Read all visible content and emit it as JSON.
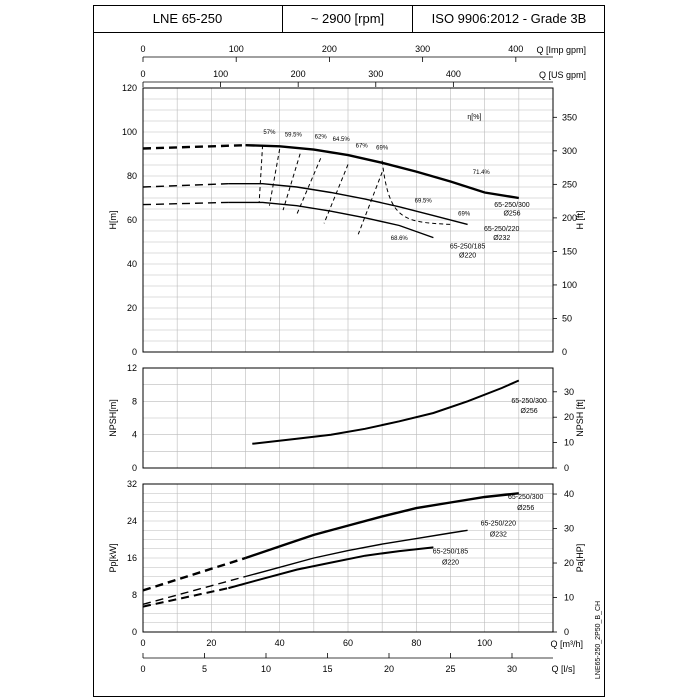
{
  "header": {
    "model": "LNE 65-250",
    "speed": "~ 2900 [rpm]",
    "standard": "ISO 9906:2012 - Grade 3B"
  },
  "top_axes": {
    "imp_gpm": {
      "label": "Q [Imp gpm]",
      "ticks": [
        "0",
        "100",
        "200",
        "300",
        "400"
      ]
    },
    "us_gpm": {
      "label": "Q [US gpm]",
      "ticks": [
        "0",
        "100",
        "200",
        "300",
        "400"
      ]
    }
  },
  "bottom_axes": {
    "m3h": {
      "label": "Q [m³/h]",
      "ticks": [
        "0",
        "20",
        "40",
        "60",
        "80",
        "100"
      ]
    },
    "ls": {
      "label": "Q [l/s]",
      "ticks": [
        "0",
        "5",
        "10",
        "15",
        "20",
        "25",
        "30"
      ]
    }
  },
  "side_code": "LNE65-250_2P50_B_CH",
  "chart_data": [
    {
      "type": "line",
      "panel": "head",
      "xlabel": "Q [m³/h]",
      "ylabel": "H[m]",
      "ylabel_right": "H [ft]",
      "ylim": [
        0,
        120
      ],
      "xlim": [
        0,
        120
      ],
      "yticks": [
        "0",
        "20",
        "40",
        "60",
        "80",
        "100",
        "120"
      ],
      "yticks_right": [
        "50",
        "100",
        "150",
        "200",
        "250",
        "300",
        "350"
      ],
      "eff_axis_label": "η[%]",
      "series": [
        {
          "name": "65-250/300 Ø256",
          "x": [
            0,
            30,
            40,
            50,
            60,
            70,
            80,
            90,
            100,
            110
          ],
          "y": [
            92.5,
            94,
            93.5,
            92,
            89.5,
            86,
            82,
            77.5,
            72.5,
            70
          ]
        },
        {
          "name": "65-250/220 Ø232",
          "x": [
            0,
            25,
            35,
            45,
            55,
            65,
            75,
            85,
            95
          ],
          "y": [
            75,
            76.5,
            76.5,
            75,
            72.5,
            69.5,
            66,
            62,
            58
          ]
        },
        {
          "name": "65-250/185 Ø220",
          "x": [
            0,
            25,
            35,
            45,
            55,
            65,
            75,
            85
          ],
          "y": [
            67,
            68,
            68,
            66.5,
            64,
            61,
            57.5,
            52
          ]
        }
      ],
      "efficiency_labels": [
        "57%",
        "59.5%",
        "62%",
        "64.5%",
        "67%",
        "69%",
        "71.4%",
        "69.5%",
        "69%",
        "68.6%"
      ]
    },
    {
      "type": "line",
      "panel": "npsh",
      "ylabel": "NPSH[m]",
      "ylabel_right": "NPSH [ft]",
      "ylim": [
        0,
        12
      ],
      "yticks": [
        "0",
        "4",
        "8",
        "12"
      ],
      "yticks_right": [
        "0",
        "10",
        "20",
        "30"
      ],
      "series": [
        {
          "name": "65-250/300 Ø256",
          "x": [
            32,
            45,
            55,
            65,
            75,
            85,
            95,
            105,
            110
          ],
          "y": [
            2.9,
            3.5,
            4.0,
            4.7,
            5.6,
            6.6,
            8.0,
            9.6,
            10.5
          ]
        }
      ]
    },
    {
      "type": "line",
      "panel": "power",
      "ylabel": "Pp[kW]",
      "ylabel_right": "Pa[HP]",
      "ylim": [
        0,
        32
      ],
      "yticks": [
        "0",
        "8",
        "16",
        "24",
        "32"
      ],
      "yticks_right": [
        "0",
        "10",
        "20",
        "30",
        "40"
      ],
      "series": [
        {
          "name": "65-250/300 Ø256",
          "x": [
            0,
            30,
            40,
            50,
            60,
            70,
            80,
            90,
            100,
            110
          ],
          "y": [
            9,
            16,
            18.5,
            21,
            23,
            25,
            26.8,
            28,
            29.2,
            30
          ]
        },
        {
          "name": "65-250/220 Ø232",
          "x": [
            0,
            30,
            40,
            50,
            60,
            70,
            80,
            90,
            95
          ],
          "y": [
            6,
            12,
            14,
            16,
            17.6,
            19,
            20.2,
            21.4,
            22
          ]
        },
        {
          "name": "65-250/185 Ø220",
          "x": [
            0,
            25,
            35,
            45,
            55,
            65,
            75,
            85
          ],
          "y": [
            5.5,
            9.5,
            11.5,
            13.5,
            15,
            16.5,
            17.5,
            18.3
          ]
        }
      ]
    }
  ],
  "annotations": {
    "head": [
      {
        "text": "65-250/300",
        "sub": "Ø256"
      },
      {
        "text": "65-250/220",
        "sub": "Ø232"
      },
      {
        "text": "65-250/185",
        "sub": "Ø220"
      }
    ],
    "npsh": [
      {
        "text": "65-250/300",
        "sub": "Ø256"
      }
    ],
    "power": [
      {
        "text": "65-250/300",
        "sub": "Ø256"
      },
      {
        "text": "65-250/220",
        "sub": "Ø232"
      },
      {
        "text": "65-250/185",
        "sub": "Ø220"
      }
    ]
  }
}
